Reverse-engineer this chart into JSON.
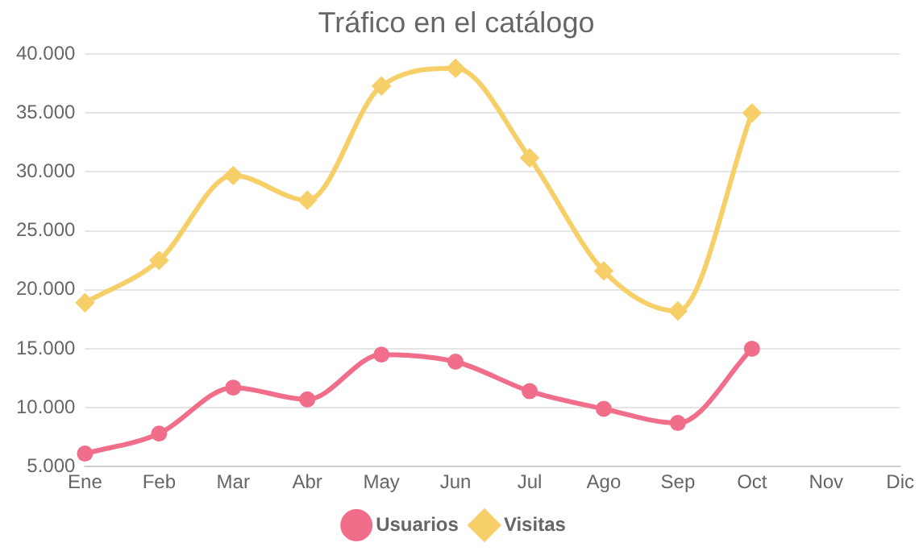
{
  "chart_data": {
    "type": "line",
    "title": "Tráfico en el catálogo",
    "categories": [
      "Ene",
      "Feb",
      "Mar",
      "Abr",
      "May",
      "Jun",
      "Jul",
      "Ago",
      "Sep",
      "Oct",
      "Nov",
      "Dic"
    ],
    "series": [
      {
        "name": "Usuarios",
        "color": "#f06e8a",
        "marker": "circle",
        "values": [
          6100,
          7800,
          11700,
          10700,
          14500,
          13900,
          11400,
          9900,
          8700,
          15000,
          null,
          null
        ]
      },
      {
        "name": "Visitas",
        "color": "#f7cf68",
        "marker": "diamond",
        "values": [
          18900,
          22500,
          29700,
          27600,
          37300,
          38800,
          31200,
          21600,
          18200,
          35000,
          null,
          null
        ]
      }
    ],
    "ylim": [
      5000,
      40000
    ],
    "yticks": [
      {
        "value": 5000,
        "label": "5.000"
      },
      {
        "value": 10000,
        "label": "10.000"
      },
      {
        "value": 15000,
        "label": "15.000"
      },
      {
        "value": 20000,
        "label": "20.000"
      },
      {
        "value": 25000,
        "label": "25.000"
      },
      {
        "value": 30000,
        "label": "30.000"
      },
      {
        "value": 35000,
        "label": "35.000"
      },
      {
        "value": 40000,
        "label": "40.000"
      }
    ],
    "grid": "y",
    "legend": "bottom"
  }
}
